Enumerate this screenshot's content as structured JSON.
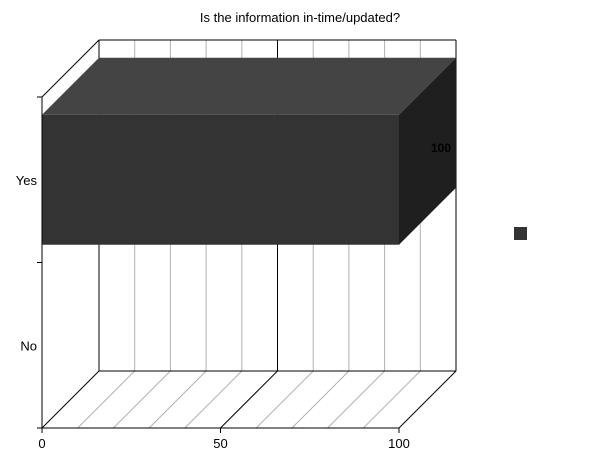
{
  "chart_data": {
    "type": "bar",
    "orientation": "horizontal",
    "three_d": true,
    "title": "Is the information in-time/updated?",
    "categories": [
      "Yes",
      "No"
    ],
    "series": [
      {
        "values": [
          100,
          0
        ],
        "color": "#333333"
      }
    ],
    "data_labels": [
      "100",
      ""
    ],
    "xlim": [
      0,
      100
    ],
    "x_ticks": [
      0,
      50,
      100
    ],
    "legend": {
      "placement": "right",
      "entries": [
        ""
      ]
    },
    "grid": true
  }
}
